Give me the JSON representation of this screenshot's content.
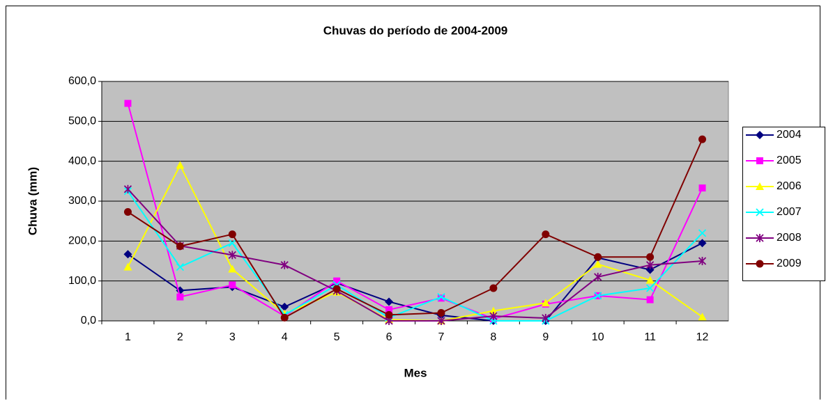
{
  "chart_data": {
    "type": "line",
    "title": "Chuvas do período de 2004-2009",
    "x_label": "Mes",
    "y_label": "Chuva (mm)",
    "categories": [
      "1",
      "2",
      "3",
      "4",
      "5",
      "6",
      "7",
      "8",
      "9",
      "10",
      "11",
      "12"
    ],
    "ylim": [
      0,
      600
    ],
    "yticks": [
      {
        "value": 0,
        "label": "0,0"
      },
      {
        "value": 100,
        "label": "100,0"
      },
      {
        "value": 200,
        "label": "200,0"
      },
      {
        "value": 300,
        "label": "300,0"
      },
      {
        "value": 400,
        "label": "400,0"
      },
      {
        "value": 500,
        "label": "500,0"
      },
      {
        "value": 600,
        "label": "600,0"
      }
    ],
    "grid": true,
    "legend": "right",
    "series": [
      {
        "name": "2004",
        "color": "#000080",
        "marker": "diamond",
        "values": [
          167,
          76,
          85,
          35,
          95,
          48,
          14,
          0,
          0,
          158,
          128,
          195
        ]
      },
      {
        "name": "2005",
        "color": "#ff00ff",
        "marker": "square",
        "values": [
          545,
          60,
          90,
          12,
          100,
          28,
          57,
          5,
          42,
          63,
          53,
          333
        ]
      },
      {
        "name": "2006",
        "color": "#ffff00",
        "marker": "triangle",
        "values": [
          135,
          390,
          130,
          18,
          72,
          3,
          0,
          25,
          45,
          142,
          102,
          10
        ]
      },
      {
        "name": "2007",
        "color": "#00ffff",
        "marker": "x",
        "values": [
          325,
          135,
          195,
          15,
          90,
          8,
          60,
          0,
          0,
          63,
          82,
          220
        ]
      },
      {
        "name": "2008",
        "color": "#800080",
        "marker": "star",
        "values": [
          330,
          188,
          165,
          140,
          75,
          0,
          0,
          12,
          7,
          110,
          140,
          150
        ]
      },
      {
        "name": "2009",
        "color": "#800000",
        "marker": "circle",
        "values": [
          273,
          187,
          217,
          8,
          80,
          15,
          20,
          82,
          217,
          160,
          160,
          455
        ]
      }
    ]
  }
}
